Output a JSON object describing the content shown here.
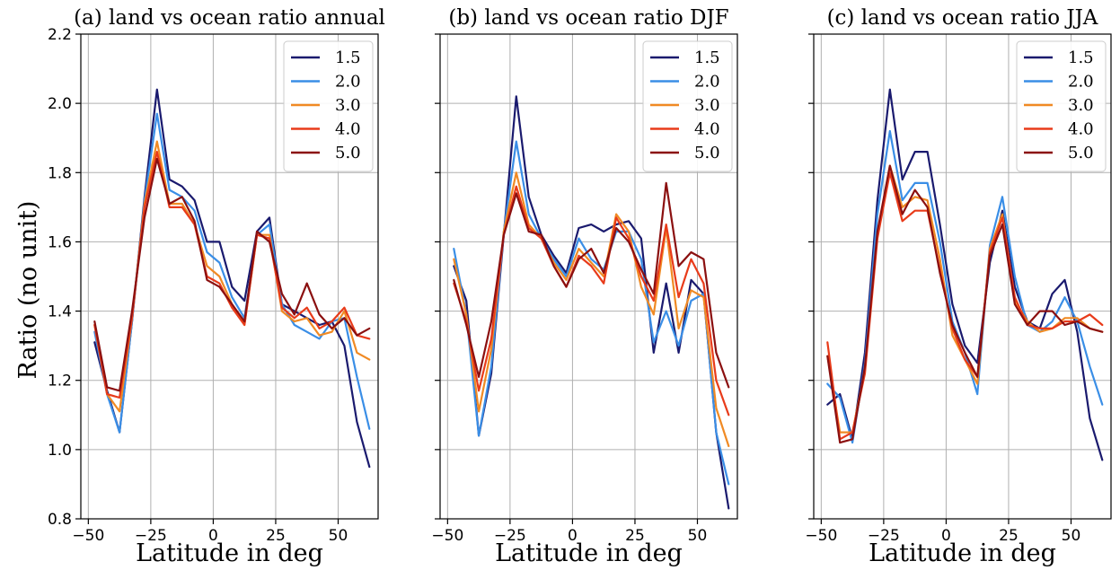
{
  "figure": {
    "ylabel": "Ratio (no unit)"
  },
  "chart_data": [
    {
      "type": "line",
      "title": "(a) land vs ocean ratio annual",
      "xlabel": "Latitude in deg",
      "ylabel": "Ratio (no unit)",
      "xlim": [
        -53,
        66
      ],
      "ylim": [
        0.8,
        2.2
      ],
      "xticks": [
        -50,
        -25,
        0,
        25,
        50
      ],
      "yticks": [
        0.8,
        1.0,
        1.2,
        1.4,
        1.6,
        1.8,
        2.0,
        2.2
      ],
      "grid": true,
      "legend_position": "top-right",
      "x": [
        -47.5,
        -42.5,
        -37.5,
        -32.5,
        -27.5,
        -22.5,
        -17.5,
        -12.5,
        -7.5,
        -2.5,
        2.5,
        7.5,
        12.5,
        17.5,
        22.5,
        27.5,
        32.5,
        37.5,
        42.5,
        47.5,
        52.5,
        57.5,
        62.5
      ],
      "series": [
        {
          "name": "1.5",
          "color": "#1a1a6e",
          "values": [
            1.31,
            1.17,
            1.05,
            1.37,
            1.73,
            2.04,
            1.78,
            1.76,
            1.72,
            1.6,
            1.6,
            1.47,
            1.43,
            1.63,
            1.67,
            1.42,
            1.4,
            1.38,
            1.36,
            1.37,
            1.3,
            1.08,
            0.95
          ]
        },
        {
          "name": "2.0",
          "color": "#3a8ee6",
          "values": [
            1.34,
            1.16,
            1.05,
            1.37,
            1.72,
            1.97,
            1.75,
            1.73,
            1.69,
            1.57,
            1.54,
            1.44,
            1.38,
            1.62,
            1.65,
            1.42,
            1.36,
            1.34,
            1.32,
            1.37,
            1.38,
            1.21,
            1.06
          ]
        },
        {
          "name": "3.0",
          "color": "#f08a24",
          "values": [
            1.36,
            1.16,
            1.11,
            1.38,
            1.71,
            1.89,
            1.71,
            1.71,
            1.65,
            1.53,
            1.5,
            1.42,
            1.36,
            1.62,
            1.62,
            1.4,
            1.37,
            1.38,
            1.33,
            1.34,
            1.4,
            1.28,
            1.26
          ]
        },
        {
          "name": "4.0",
          "color": "#e83b1a",
          "values": [
            1.36,
            1.16,
            1.15,
            1.38,
            1.7,
            1.86,
            1.7,
            1.7,
            1.65,
            1.5,
            1.48,
            1.41,
            1.36,
            1.62,
            1.61,
            1.41,
            1.38,
            1.41,
            1.35,
            1.37,
            1.41,
            1.33,
            1.32
          ]
        },
        {
          "name": "5.0",
          "color": "#8b1010",
          "values": [
            1.37,
            1.18,
            1.17,
            1.4,
            1.67,
            1.84,
            1.71,
            1.73,
            1.66,
            1.49,
            1.47,
            1.42,
            1.37,
            1.63,
            1.6,
            1.45,
            1.39,
            1.48,
            1.39,
            1.35,
            1.38,
            1.33,
            1.35
          ]
        }
      ]
    },
    {
      "type": "line",
      "title": "(b) land vs ocean ratio DJF",
      "xlabel": "Latitude in deg",
      "xlim": [
        -53,
        66
      ],
      "ylim": [
        0.8,
        2.2
      ],
      "xticks": [
        -50,
        -25,
        0,
        25,
        50
      ],
      "yticks": [
        0.8,
        1.0,
        1.2,
        1.4,
        1.6,
        1.8,
        2.0,
        2.2
      ],
      "grid": true,
      "legend_position": "top-right",
      "x": [
        -47.5,
        -42.5,
        -37.5,
        -32.5,
        -27.5,
        -22.5,
        -17.5,
        -12.5,
        -7.5,
        -2.5,
        2.5,
        7.5,
        12.5,
        17.5,
        22.5,
        27.5,
        32.5,
        37.5,
        42.5,
        47.5,
        52.5,
        57.5,
        62.5
      ],
      "series": [
        {
          "name": "1.5",
          "color": "#1a1a6e",
          "values": [
            1.53,
            1.43,
            1.04,
            1.22,
            1.62,
            2.02,
            1.73,
            1.62,
            1.56,
            1.51,
            1.64,
            1.65,
            1.63,
            1.65,
            1.66,
            1.61,
            1.28,
            1.48,
            1.28,
            1.49,
            1.45,
            1.05,
            0.83
          ]
        },
        {
          "name": "2.0",
          "color": "#3a8ee6",
          "values": [
            1.58,
            1.39,
            1.04,
            1.24,
            1.63,
            1.89,
            1.68,
            1.61,
            1.55,
            1.5,
            1.61,
            1.55,
            1.52,
            1.63,
            1.63,
            1.55,
            1.31,
            1.4,
            1.3,
            1.43,
            1.45,
            1.05,
            0.9
          ]
        },
        {
          "name": "3.0",
          "color": "#f08a24",
          "values": [
            1.55,
            1.39,
            1.11,
            1.29,
            1.63,
            1.8,
            1.65,
            1.61,
            1.54,
            1.49,
            1.58,
            1.54,
            1.5,
            1.68,
            1.63,
            1.47,
            1.39,
            1.64,
            1.35,
            1.46,
            1.44,
            1.12,
            1.01
          ]
        },
        {
          "name": "4.0",
          "color": "#e83b1a",
          "values": [
            1.48,
            1.37,
            1.17,
            1.32,
            1.62,
            1.76,
            1.64,
            1.61,
            1.53,
            1.47,
            1.56,
            1.53,
            1.48,
            1.67,
            1.61,
            1.5,
            1.43,
            1.65,
            1.44,
            1.55,
            1.48,
            1.2,
            1.1
          ]
        },
        {
          "name": "5.0",
          "color": "#8b1010",
          "values": [
            1.49,
            1.36,
            1.21,
            1.37,
            1.62,
            1.74,
            1.63,
            1.62,
            1.53,
            1.47,
            1.55,
            1.58,
            1.51,
            1.64,
            1.6,
            1.52,
            1.45,
            1.77,
            1.53,
            1.57,
            1.55,
            1.28,
            1.18
          ]
        }
      ]
    },
    {
      "type": "line",
      "title": "(c) land vs ocean ratio JJA",
      "xlabel": "Latitude in deg",
      "xlim": [
        -53,
        66
      ],
      "ylim": [
        0.8,
        2.2
      ],
      "xticks": [
        -50,
        -25,
        0,
        25,
        50
      ],
      "yticks": [
        0.8,
        1.0,
        1.2,
        1.4,
        1.6,
        1.8,
        2.0,
        2.2
      ],
      "grid": true,
      "legend_position": "top-right",
      "x": [
        -47.5,
        -42.5,
        -37.5,
        -32.5,
        -27.5,
        -22.5,
        -17.5,
        -12.5,
        -7.5,
        -2.5,
        2.5,
        7.5,
        12.5,
        17.5,
        22.5,
        27.5,
        32.5,
        37.5,
        42.5,
        47.5,
        52.5,
        57.5,
        62.5
      ],
      "series": [
        {
          "name": "1.5",
          "color": "#1a1a6e",
          "values": [
            1.13,
            1.16,
            1.03,
            1.28,
            1.72,
            2.04,
            1.78,
            1.86,
            1.86,
            1.65,
            1.42,
            1.3,
            1.25,
            1.54,
            1.69,
            1.47,
            1.37,
            1.35,
            1.45,
            1.49,
            1.34,
            1.09,
            0.97
          ]
        },
        {
          "name": "2.0",
          "color": "#3a8ee6",
          "values": [
            1.19,
            1.15,
            1.02,
            1.25,
            1.68,
            1.92,
            1.72,
            1.77,
            1.77,
            1.6,
            1.37,
            1.28,
            1.16,
            1.59,
            1.73,
            1.5,
            1.36,
            1.34,
            1.37,
            1.44,
            1.37,
            1.24,
            1.13
          ]
        },
        {
          "name": "3.0",
          "color": "#f08a24",
          "values": [
            1.27,
            1.05,
            1.05,
            1.23,
            1.62,
            1.82,
            1.7,
            1.73,
            1.72,
            1.55,
            1.33,
            1.26,
            1.19,
            1.58,
            1.68,
            1.43,
            1.37,
            1.34,
            1.35,
            1.38,
            1.38,
            1.35,
            1.34
          ]
        },
        {
          "name": "4.0",
          "color": "#e83b1a",
          "values": [
            1.31,
            1.03,
            1.05,
            1.22,
            1.61,
            1.8,
            1.66,
            1.69,
            1.69,
            1.52,
            1.35,
            1.26,
            1.21,
            1.57,
            1.67,
            1.44,
            1.36,
            1.35,
            1.35,
            1.37,
            1.37,
            1.39,
            1.36
          ]
        },
        {
          "name": "5.0",
          "color": "#8b1010",
          "values": [
            1.27,
            1.02,
            1.03,
            1.24,
            1.63,
            1.82,
            1.68,
            1.75,
            1.7,
            1.51,
            1.36,
            1.28,
            1.21,
            1.56,
            1.65,
            1.42,
            1.36,
            1.4,
            1.4,
            1.36,
            1.37,
            1.35,
            1.34
          ]
        }
      ]
    }
  ]
}
